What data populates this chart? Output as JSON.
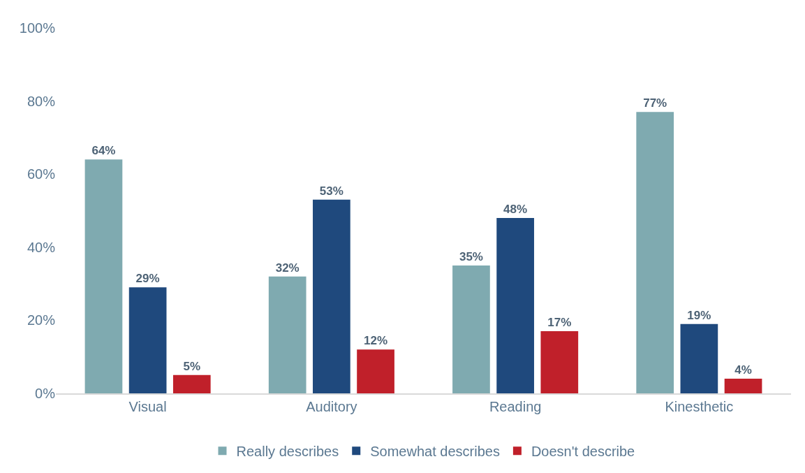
{
  "chart_data": {
    "type": "bar",
    "categories": [
      "Visual",
      "Auditory",
      "Reading",
      "Kinesthetic"
    ],
    "series": [
      {
        "name": "Really describes",
        "color": "#7faab0",
        "values": [
          64,
          32,
          35,
          77
        ],
        "value_labels": [
          "64%",
          "32%",
          "35%",
          "77%"
        ]
      },
      {
        "name": "Somewhat describes",
        "color": "#1f497d",
        "values": [
          29,
          53,
          48,
          19
        ],
        "value_labels": [
          "29%",
          "53%",
          "48%",
          "19%"
        ]
      },
      {
        "name": "Doesn't describe",
        "color": "#c0202a",
        "values": [
          5,
          12,
          17,
          4
        ],
        "value_labels": [
          "5%",
          "12%",
          "17%",
          "4%"
        ]
      }
    ],
    "ylim": [
      0,
      100
    ],
    "yticks": [
      {
        "value": 0,
        "label": "0%"
      },
      {
        "value": 20,
        "label": "20%"
      },
      {
        "value": 40,
        "label": "40%"
      },
      {
        "value": 60,
        "label": "60%"
      },
      {
        "value": 80,
        "label": "80%"
      },
      {
        "value": 100,
        "label": "100%"
      }
    ],
    "grid": false,
    "legend": "bottom"
  }
}
